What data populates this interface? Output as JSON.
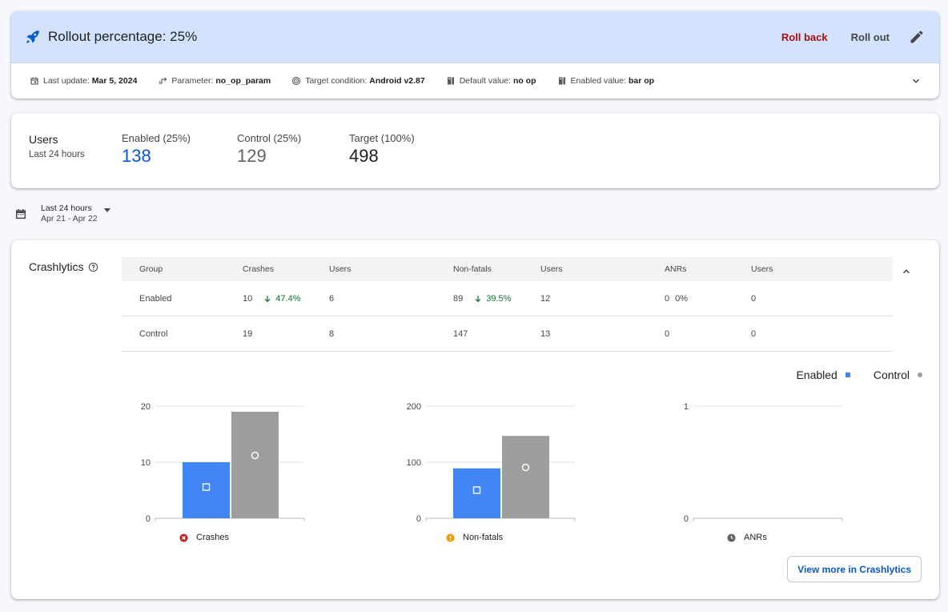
{
  "rollout": {
    "title": "Rollout percentage: 25%",
    "rollback_label": "Roll back",
    "rollout_label": "Roll out",
    "meta": {
      "last_update_label": "Last update:",
      "last_update_value": "Mar 5, 2024",
      "parameter_label": "Parameter:",
      "parameter_value": "no_op_param",
      "target_label": "Target condition:",
      "target_value": "Android v2.87",
      "default_label": "Default value:",
      "default_value": "no op",
      "enabled_label": "Enabled value:",
      "enabled_value": "bar op"
    }
  },
  "users": {
    "title": "Users",
    "subtitle": "Last 24 hours",
    "enabled_label": "Enabled (25%)",
    "enabled_value": "138",
    "control_label": "Control (25%)",
    "control_value": "129",
    "target_label": "Target (100%)",
    "target_value": "498"
  },
  "date_filter": {
    "label": "Last 24 hours",
    "range": "Apr 21 - Apr 22"
  },
  "crashlytics": {
    "title": "Crashlytics",
    "table": {
      "headers": [
        "Group",
        "Crashes",
        "Users",
        "Non-fatals",
        "Users",
        "ANRs",
        "Users"
      ],
      "rows": [
        {
          "group": "Enabled",
          "crashes": "10",
          "crashes_delta": "47.4%",
          "crash_users": "6",
          "nonfatals": "89",
          "nonfatals_delta": "39.5%",
          "nonfatal_users": "12",
          "anrs": "0",
          "anrs_delta": "0%",
          "anr_users": "0"
        },
        {
          "group": "Control",
          "crashes": "19",
          "crashes_delta": "",
          "crash_users": "8",
          "nonfatals": "147",
          "nonfatals_delta": "",
          "nonfatal_users": "13",
          "anrs": "0",
          "anrs_delta": "",
          "anr_users": "0"
        }
      ]
    },
    "legend": {
      "enabled": "Enabled",
      "control": "Control"
    },
    "view_more_label": "View more in Crashlytics"
  },
  "colors": {
    "enabled": "#4285f4",
    "control": "#9e9e9e",
    "accent": "#0b57d0",
    "danger": "#a50e0e",
    "positive": "#137333"
  },
  "chart_data": [
    {
      "type": "bar",
      "title": "Crashes",
      "categories": [
        "Enabled",
        "Control"
      ],
      "values": [
        10,
        19
      ],
      "ticks": [
        0,
        10,
        20
      ],
      "ylim": [
        0,
        20
      ]
    },
    {
      "type": "bar",
      "title": "Non-fatals",
      "categories": [
        "Enabled",
        "Control"
      ],
      "values": [
        89,
        147
      ],
      "ticks": [
        0,
        100,
        200
      ],
      "ylim": [
        0,
        200
      ]
    },
    {
      "type": "bar",
      "title": "ANRs",
      "categories": [
        "Enabled",
        "Control"
      ],
      "values": [
        0,
        0
      ],
      "ticks": [
        0,
        1
      ],
      "ylim": [
        0,
        1
      ]
    }
  ]
}
